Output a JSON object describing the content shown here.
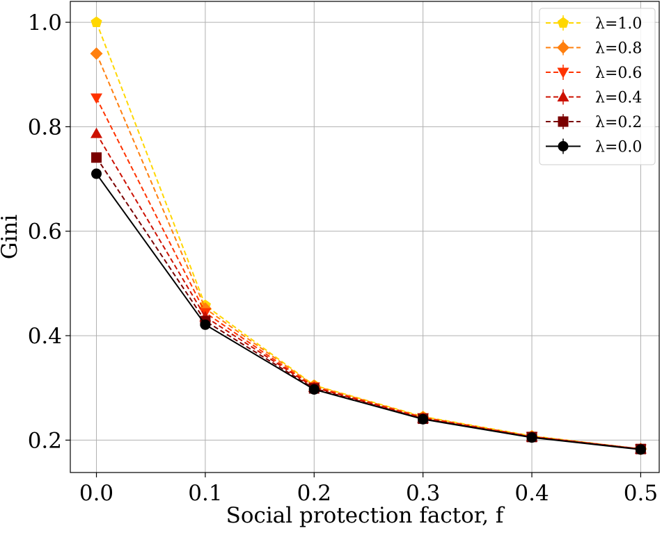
{
  "chart_data": {
    "type": "line",
    "title": "",
    "xlabel": "Social protection factor, f",
    "ylabel": "Gini",
    "x": [
      0.0,
      0.1,
      0.2,
      0.3,
      0.4,
      0.5
    ],
    "xlim": [
      -0.024,
      0.517
    ],
    "ylim": [
      0.138,
      1.04
    ],
    "xticks": [
      0.0,
      0.1,
      0.2,
      0.3,
      0.4,
      0.5
    ],
    "xtick_labels": [
      "0.0",
      "0.1",
      "0.2",
      "0.3",
      "0.4",
      "0.5"
    ],
    "yticks": [
      0.2,
      0.4,
      0.6,
      0.8,
      1.0
    ],
    "ytick_labels": [
      "0.2",
      "0.4",
      "0.6",
      "0.8",
      "1.0"
    ],
    "grid": true,
    "legend_position": "top-right",
    "series": [
      {
        "name": "λ=1.0",
        "color": "#ffd700",
        "dashed": true,
        "marker": "pentagon",
        "values": [
          1.0,
          0.458,
          0.305,
          0.245,
          0.208,
          0.183
        ]
      },
      {
        "name": "λ=0.8",
        "color": "#ff7f0e",
        "dashed": true,
        "marker": "diamond",
        "values": [
          0.94,
          0.452,
          0.304,
          0.244,
          0.207,
          0.183
        ]
      },
      {
        "name": "λ=0.6",
        "color": "#ff3300",
        "dashed": true,
        "marker": "triangle-down",
        "values": [
          0.855,
          0.444,
          0.302,
          0.243,
          0.207,
          0.183
        ]
      },
      {
        "name": "λ=0.4",
        "color": "#cc1100",
        "dashed": true,
        "marker": "triangle-up",
        "values": [
          0.787,
          0.436,
          0.301,
          0.242,
          0.206,
          0.183
        ]
      },
      {
        "name": "λ=0.2",
        "color": "#7a0000",
        "dashed": true,
        "marker": "square",
        "values": [
          0.741,
          0.428,
          0.299,
          0.241,
          0.206,
          0.183
        ]
      },
      {
        "name": "λ=0.0",
        "color": "#000000",
        "dashed": false,
        "marker": "circle",
        "values": [
          0.71,
          0.421,
          0.297,
          0.24,
          0.205,
          0.182
        ]
      }
    ]
  }
}
